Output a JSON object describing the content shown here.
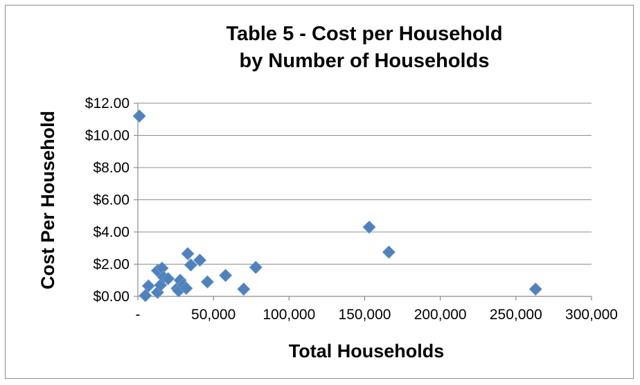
{
  "chart_data": {
    "type": "scatter",
    "title": "Table 5 - Cost per Household",
    "subtitle": "by Number of Households",
    "xlabel": "Total Households",
    "ylabel": "Cost Per Household",
    "xlim": [
      0,
      300000
    ],
    "ylim": [
      0,
      12
    ],
    "x_ticks": [
      {
        "value": 0,
        "label": "-"
      },
      {
        "value": 50000,
        "label": "50,000"
      },
      {
        "value": 100000,
        "label": "100,000"
      },
      {
        "value": 150000,
        "label": "150,000"
      },
      {
        "value": 200000,
        "label": "200,000"
      },
      {
        "value": 250000,
        "label": "250,000"
      },
      {
        "value": 300000,
        "label": "300,000"
      }
    ],
    "y_ticks": [
      {
        "value": 0,
        "label": "$0.00"
      },
      {
        "value": 2,
        "label": "$2.00"
      },
      {
        "value": 4,
        "label": "$4.00"
      },
      {
        "value": 6,
        "label": "$6.00"
      },
      {
        "value": 8,
        "label": "$8.00"
      },
      {
        "value": 10,
        "label": "$10.00"
      },
      {
        "value": 12,
        "label": "$12.00"
      }
    ],
    "grid": "horizontal",
    "legend": "none",
    "color": "#4f81bd",
    "marker": "diamond",
    "points": [
      {
        "x": 1000,
        "y": 11.2
      },
      {
        "x": 5000,
        "y": 0.05
      },
      {
        "x": 7000,
        "y": 0.65
      },
      {
        "x": 13000,
        "y": 0.25
      },
      {
        "x": 13000,
        "y": 1.6
      },
      {
        "x": 15000,
        "y": 0.7
      },
      {
        "x": 16000,
        "y": 1.75
      },
      {
        "x": 17000,
        "y": 1.2
      },
      {
        "x": 20000,
        "y": 1.1
      },
      {
        "x": 26000,
        "y": 0.5
      },
      {
        "x": 27000,
        "y": 0.35
      },
      {
        "x": 28000,
        "y": 1.0
      },
      {
        "x": 30000,
        "y": 0.7
      },
      {
        "x": 32000,
        "y": 0.5
      },
      {
        "x": 33000,
        "y": 2.65
      },
      {
        "x": 35000,
        "y": 1.95
      },
      {
        "x": 41000,
        "y": 2.25
      },
      {
        "x": 46000,
        "y": 0.9
      },
      {
        "x": 58000,
        "y": 1.3
      },
      {
        "x": 70000,
        "y": 0.45
      },
      {
        "x": 78000,
        "y": 1.8
      },
      {
        "x": 153000,
        "y": 4.3
      },
      {
        "x": 166000,
        "y": 2.75
      },
      {
        "x": 263000,
        "y": 0.45
      }
    ]
  }
}
